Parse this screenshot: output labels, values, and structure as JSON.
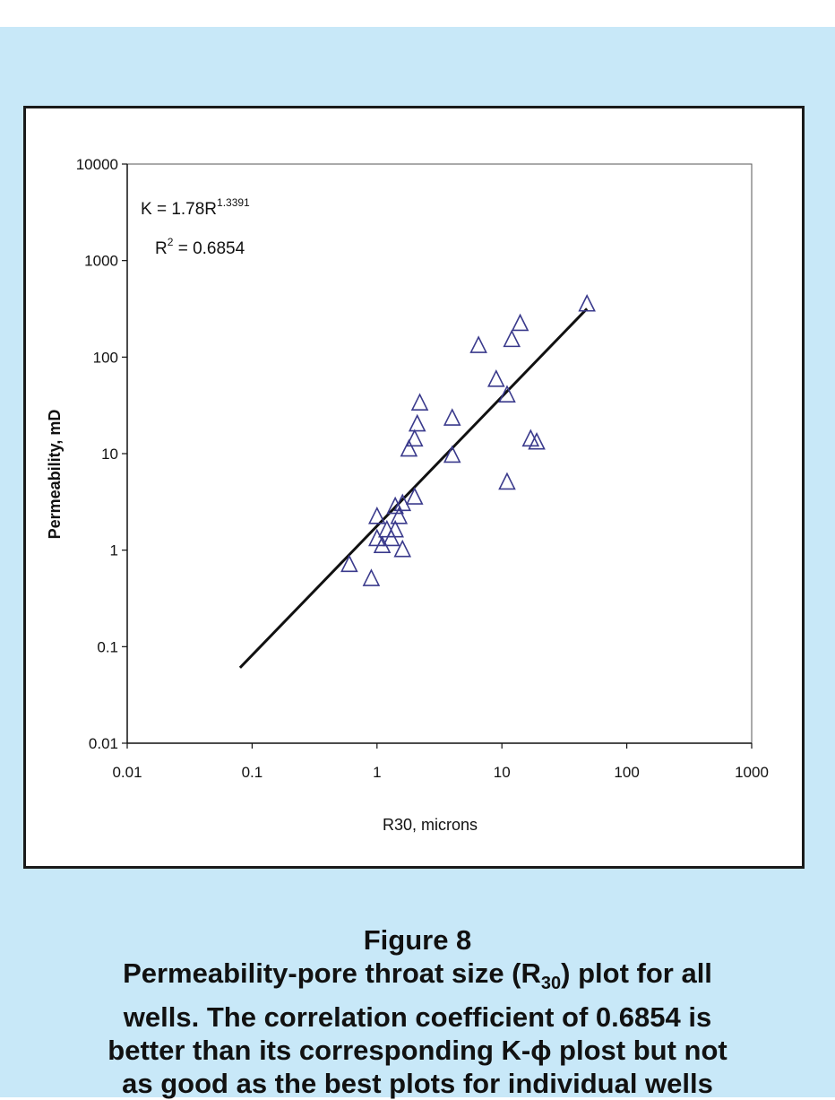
{
  "figure": {
    "label": "Figure 8",
    "caption_lines": [
      {
        "before": "Permeability-pore throat size (R",
        "sub": "30",
        "after": ") plot for all"
      },
      {
        "before": "wells. The correlation coefficient of 0.6854 is",
        "sub": "",
        "after": ""
      },
      {
        "before": "better than its corresponding K-ϕ plost but not",
        "sub": "",
        "after": ""
      },
      {
        "before": "as good as the best plots for individual wells",
        "sub": "",
        "after": ""
      }
    ]
  },
  "chart_data": {
    "type": "scatter",
    "xlabel": "R30, microns",
    "ylabel": "Permeability, mD",
    "x_scale": "log",
    "y_scale": "log",
    "xlim": [
      0.01,
      1000
    ],
    "ylim": [
      0.01,
      10000
    ],
    "x_ticks": [
      "0.01",
      "0.1",
      "1",
      "10",
      "100",
      "1000"
    ],
    "y_ticks": [
      "0.01",
      "0.1",
      "1",
      "10",
      "100",
      "1000",
      "10000"
    ],
    "grid": false,
    "marker": "triangle-open",
    "marker_color": "#3a3a8c",
    "trendline": {
      "equation_prefix": "K = 1.78R",
      "equation_exponent": "1.3391",
      "r2_prefix": "R",
      "r2_exponent": "2",
      "r2_suffix": " = 0.6854",
      "coef": 1.78,
      "exponent": 1.3391,
      "x_range": [
        0.08,
        48
      ]
    },
    "series": [
      {
        "points": [
          [
            0.6,
            0.7
          ],
          [
            0.9,
            0.5
          ],
          [
            1.0,
            2.2
          ],
          [
            1.0,
            1.3
          ],
          [
            1.1,
            1.1
          ],
          [
            1.2,
            1.6
          ],
          [
            1.3,
            1.3
          ],
          [
            1.4,
            1.6
          ],
          [
            1.4,
            2.8
          ],
          [
            1.5,
            2.2
          ],
          [
            1.6,
            1.0
          ],
          [
            1.6,
            3.0
          ],
          [
            1.8,
            11
          ],
          [
            2.0,
            3.5
          ],
          [
            2.0,
            14
          ],
          [
            2.1,
            20
          ],
          [
            2.2,
            33
          ],
          [
            4.0,
            23
          ],
          [
            4.0,
            9.5
          ],
          [
            6.5,
            130
          ],
          [
            9.0,
            58
          ],
          [
            11,
            40
          ],
          [
            11,
            5.0
          ],
          [
            12,
            150
          ],
          [
            14,
            220
          ],
          [
            17,
            14
          ],
          [
            19,
            13
          ],
          [
            48,
            350
          ]
        ]
      }
    ]
  }
}
